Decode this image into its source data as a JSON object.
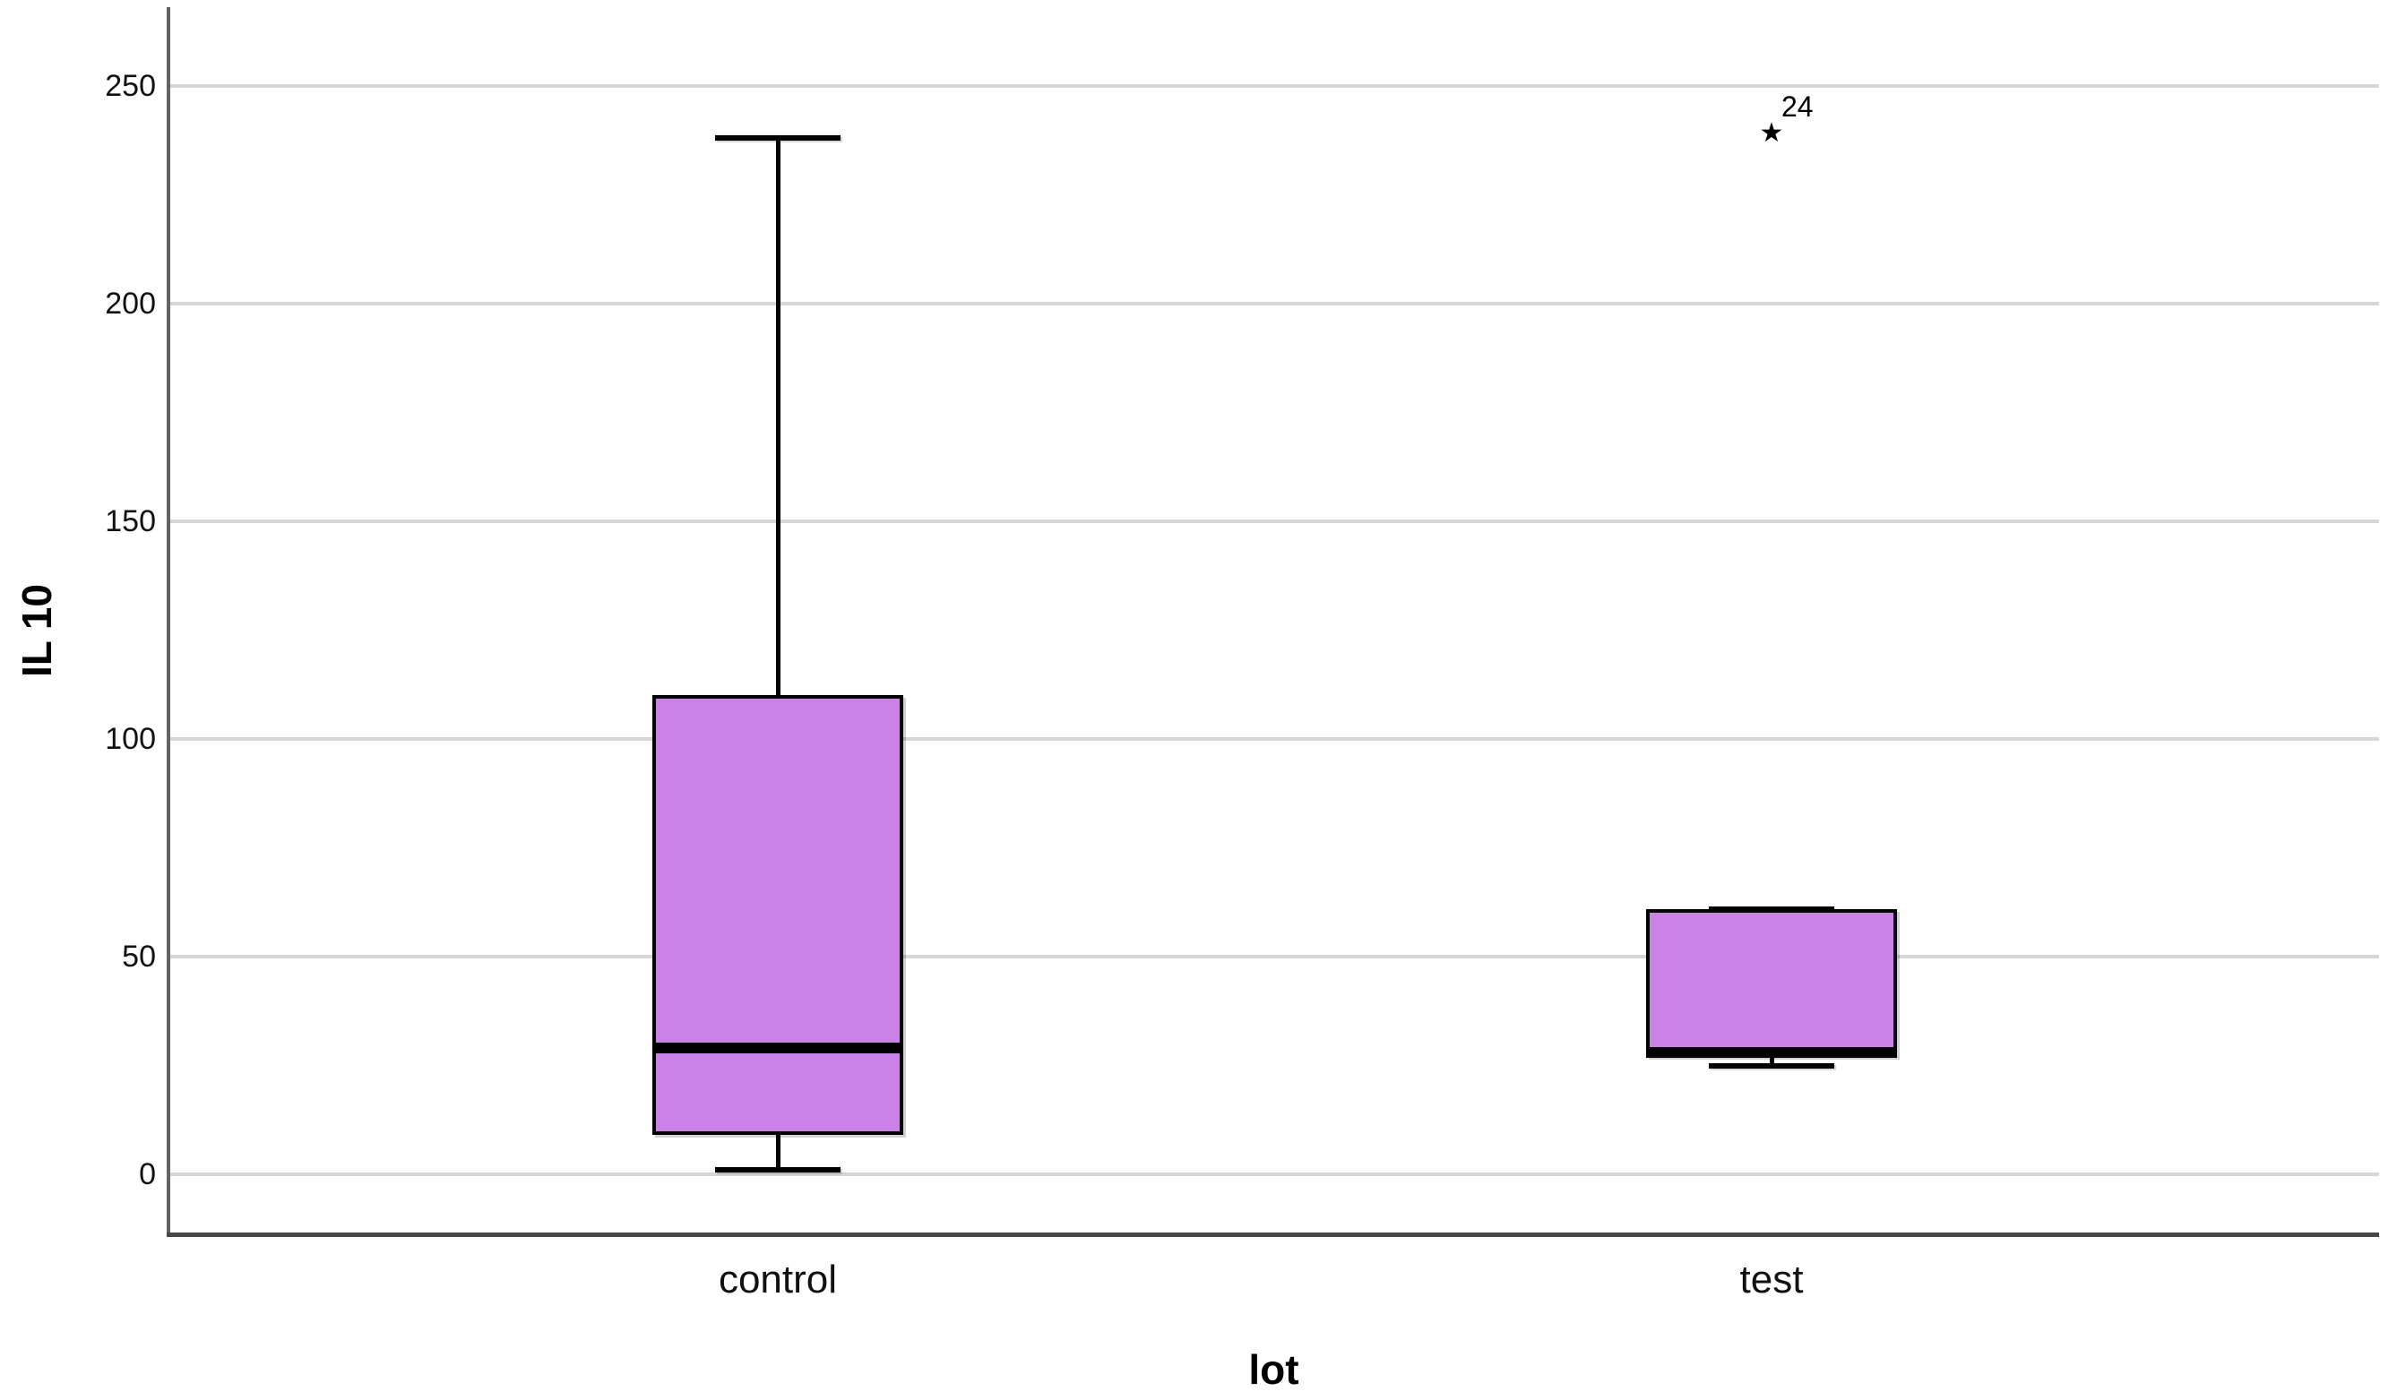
{
  "chart_data": {
    "type": "boxplot",
    "title": "",
    "ylabel": "IL 10",
    "xlabel": "lot",
    "categories": [
      "control",
      "test"
    ],
    "yticks": [
      0,
      50,
      100,
      150,
      200,
      250
    ],
    "ylim": [
      -14,
      268
    ],
    "grid": "horizontal-only",
    "legend": "none",
    "series": [
      {
        "category": "control",
        "whisker_low": 1,
        "q1": 9,
        "median": 29,
        "q3": 110,
        "whisker_high": 238,
        "outliers": []
      },
      {
        "category": "test",
        "whisker_low": 25,
        "q1": 27,
        "median": 28,
        "q3": 61,
        "whisker_high": 61,
        "outliers": [
          {
            "value": 239,
            "label": "24",
            "symbol": "star-icon",
            "glyph": "★"
          }
        ]
      }
    ],
    "colors": {
      "box_fill": "#ca82e6",
      "box_border": "#000000",
      "median_line": "#000000",
      "whisker": "#000000",
      "gridline": "#d6d6d6",
      "y_axis_line": "#646464",
      "x_axis_line": "#454545",
      "text": "#111111"
    }
  }
}
